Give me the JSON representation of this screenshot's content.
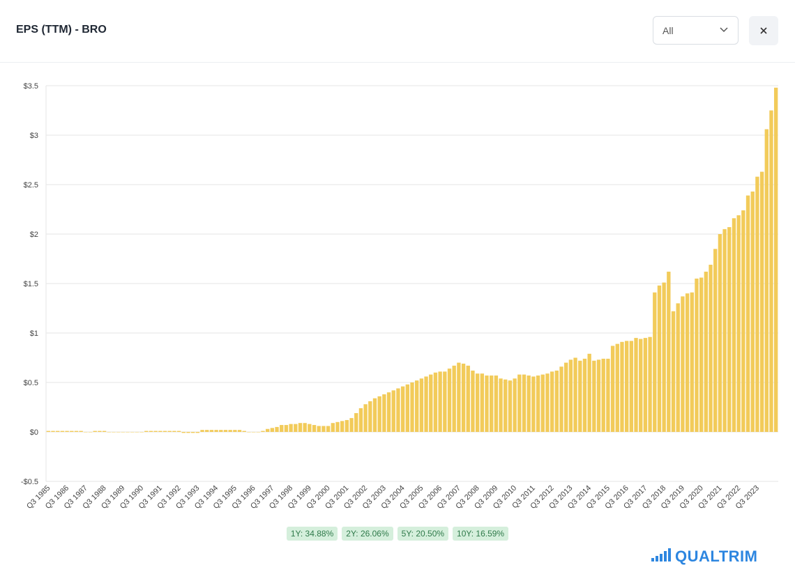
{
  "header": {
    "filter": "All"
  },
  "chart_data": {
    "type": "bar",
    "title": "EPS (TTM) - BRO",
    "color": "#f2cb5a",
    "grid": true,
    "ylim": [
      -0.5,
      3.5
    ],
    "yticks": [
      {
        "value": -0.5,
        "label": "-$0.5"
      },
      {
        "value": 0,
        "label": "$0"
      },
      {
        "value": 0.5,
        "label": "$0.5"
      },
      {
        "value": 1,
        "label": "$1"
      },
      {
        "value": 1.5,
        "label": "$1.5"
      },
      {
        "value": 2,
        "label": "$2"
      },
      {
        "value": 2.5,
        "label": "$2.5"
      },
      {
        "value": 3,
        "label": "$3"
      },
      {
        "value": 3.5,
        "label": "$3.5"
      }
    ],
    "categories": [
      "Q3 1985",
      null,
      null,
      null,
      "Q3 1986",
      null,
      null,
      null,
      "Q3 1987",
      null,
      null,
      null,
      "Q3 1988",
      null,
      null,
      null,
      "Q3 1989",
      null,
      null,
      null,
      "Q3 1990",
      null,
      null,
      null,
      "Q3 1991",
      null,
      null,
      null,
      "Q3 1992",
      null,
      null,
      null,
      "Q3 1993",
      null,
      null,
      null,
      "Q3 1994",
      null,
      null,
      null,
      "Q3 1995",
      null,
      null,
      null,
      "Q3 1996",
      null,
      null,
      null,
      "Q3 1997",
      null,
      null,
      null,
      "Q3 1998",
      null,
      null,
      null,
      "Q3 1999",
      null,
      null,
      null,
      "Q3 2000",
      null,
      null,
      null,
      "Q3 2001",
      null,
      null,
      null,
      "Q3 2002",
      null,
      null,
      null,
      "Q3 2003",
      null,
      null,
      null,
      "Q3 2004",
      null,
      null,
      null,
      "Q3 2005",
      null,
      null,
      null,
      "Q3 2006",
      null,
      null,
      null,
      "Q3 2007",
      null,
      null,
      null,
      "Q3 2008",
      null,
      null,
      null,
      "Q3 2009",
      null,
      null,
      null,
      "Q3 2010",
      null,
      null,
      null,
      "Q3 2011",
      null,
      null,
      null,
      "Q3 2012",
      null,
      null,
      null,
      "Q3 2013",
      null,
      null,
      null,
      "Q3 2014",
      null,
      null,
      null,
      "Q3 2015",
      null,
      null,
      null,
      "Q3 2016",
      null,
      null,
      null,
      "Q3 2017",
      null,
      null,
      null,
      "Q3 2018",
      null,
      null,
      null,
      "Q3 2019",
      null,
      null,
      null,
      "Q3 2020",
      null,
      null,
      null,
      "Q3 2021",
      null,
      null,
      null,
      "Q3 2022",
      null,
      null,
      null,
      "Q3 2023",
      null,
      null,
      null,
      null
    ],
    "values": [
      0.01,
      0.01,
      0.01,
      0.01,
      0.01,
      0.01,
      0.01,
      0.01,
      0,
      0,
      0.01,
      0.01,
      0.01,
      0,
      0,
      0,
      0,
      0,
      0,
      0,
      0,
      0.01,
      0.01,
      0.01,
      0.01,
      0.01,
      0.01,
      0.01,
      0.01,
      -0.01,
      -0.01,
      -0.01,
      -0.01,
      0.02,
      0.02,
      0.02,
      0.02,
      0.02,
      0.02,
      0.02,
      0.02,
      0.02,
      0.01,
      0,
      0,
      0,
      0.01,
      0.03,
      0.04,
      0.05,
      0.07,
      0.07,
      0.08,
      0.08,
      0.09,
      0.09,
      0.08,
      0.07,
      0.06,
      0.06,
      0.06,
      0.09,
      0.1,
      0.11,
      0.12,
      0.14,
      0.19,
      0.24,
      0.28,
      0.31,
      0.34,
      0.36,
      0.38,
      0.4,
      0.42,
      0.44,
      0.46,
      0.48,
      0.5,
      0.52,
      0.54,
      0.56,
      0.58,
      0.6,
      0.61,
      0.61,
      0.64,
      0.67,
      0.7,
      0.69,
      0.67,
      0.62,
      0.59,
      0.59,
      0.57,
      0.57,
      0.57,
      0.54,
      0.53,
      0.52,
      0.54,
      0.58,
      0.58,
      0.57,
      0.56,
      0.57,
      0.58,
      0.59,
      0.61,
      0.62,
      0.66,
      0.7,
      0.73,
      0.75,
      0.72,
      0.74,
      0.79,
      0.72,
      0.73,
      0.74,
      0.74,
      0.87,
      0.89,
      0.91,
      0.92,
      0.92,
      0.95,
      0.94,
      0.95,
      0.96,
      1.41,
      1.48,
      1.51,
      1.62,
      1.22,
      1.3,
      1.37,
      1.4,
      1.41,
      1.55,
      1.56,
      1.62,
      1.69,
      1.85,
      2.0,
      2.05,
      2.07,
      2.16,
      2.19,
      2.24,
      2.39,
      2.43,
      2.58,
      2.63,
      3.06,
      3.25,
      3.48
    ]
  },
  "growth_badges": [
    "1Y: 34.88%",
    "2Y: 26.06%",
    "5Y: 20.50%",
    "10Y: 16.59%"
  ],
  "brand": "QUALTRIM"
}
